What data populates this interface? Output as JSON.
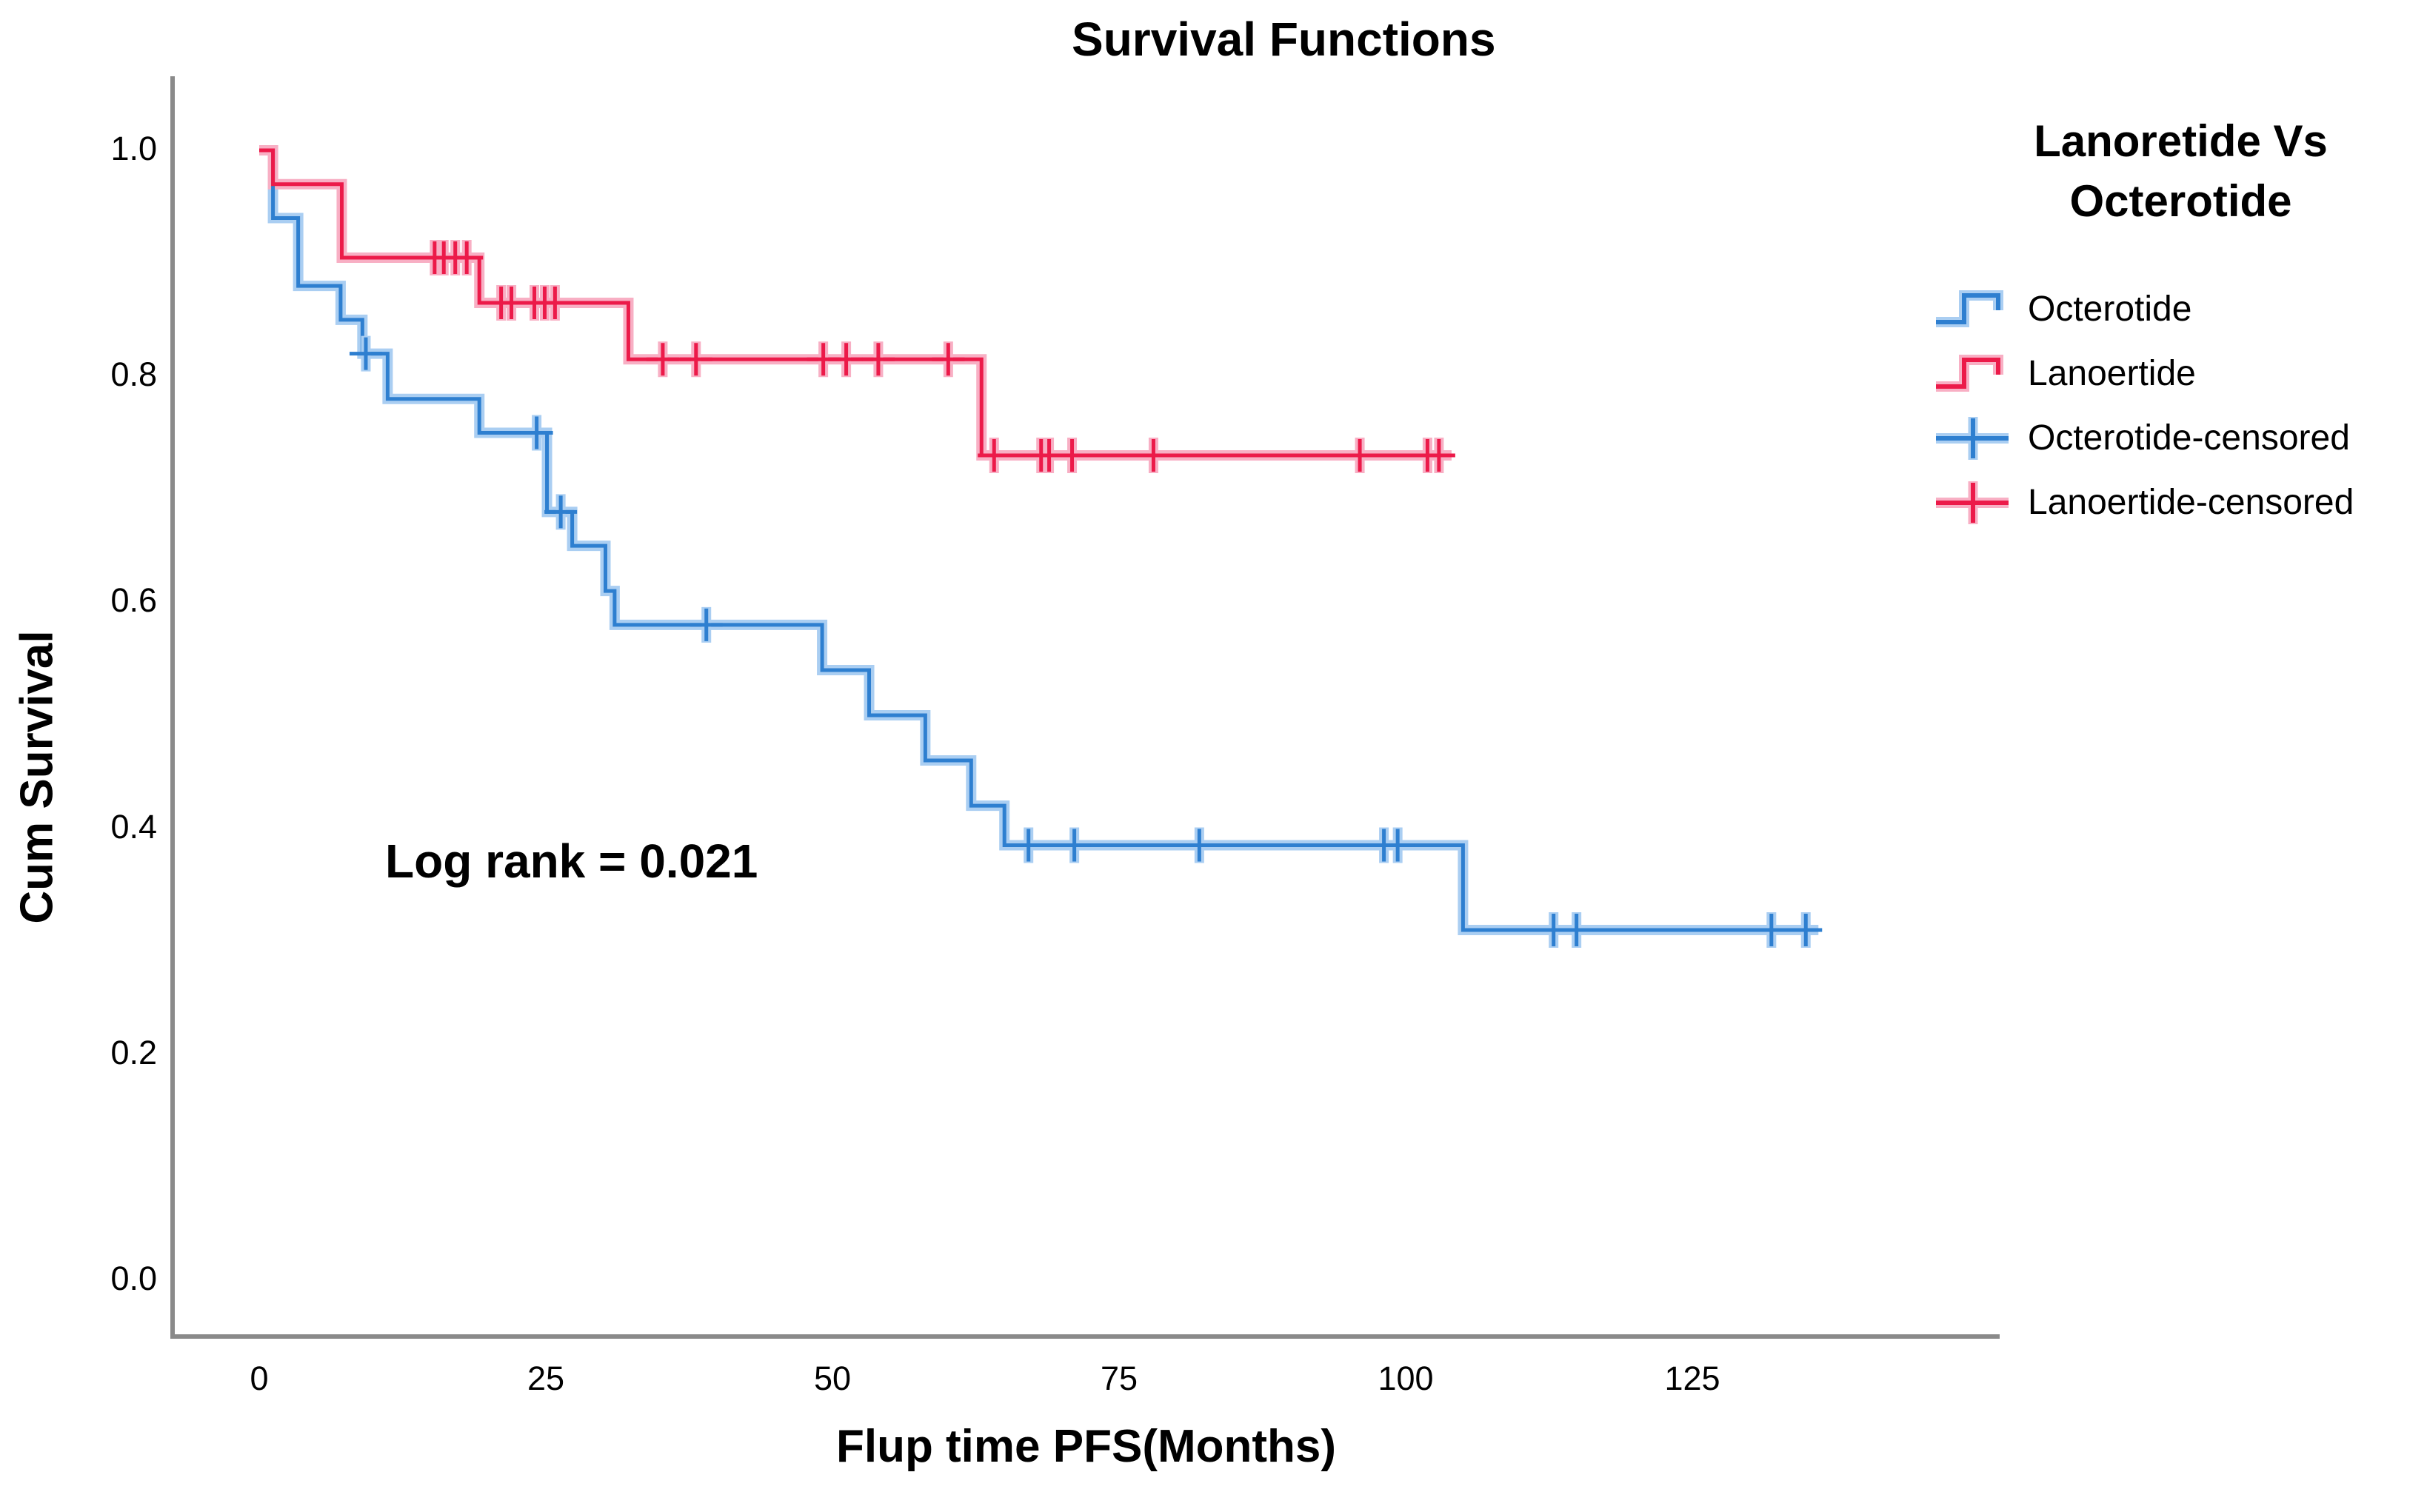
{
  "chart_data": {
    "type": "line",
    "subtype": "kaplan-meier-step",
    "title": "Survival Functions",
    "xlabel": "Flup time PFS(Months)",
    "ylabel": "Cum Survival",
    "annotation": "Log rank = 0.021",
    "grid": false,
    "axis_color": "#8A8A8A",
    "x_ticks": [
      "0",
      "25",
      "50",
      "75",
      "100",
      "125"
    ],
    "x_tick_values": [
      0,
      25,
      50,
      75,
      100,
      125
    ],
    "y_ticks": [
      "0.0",
      "0.2",
      "0.4",
      "0.6",
      "0.8",
      "1.0"
    ],
    "y_tick_values": [
      0.0,
      0.2,
      0.4,
      0.6,
      0.8,
      1.0
    ],
    "xlim": [
      -7.5,
      152
    ],
    "ylim": [
      -0.05,
      1.066
    ],
    "legend": {
      "title": "Lanoretide Vs Octerotide",
      "position": "right",
      "entries": [
        {
          "label": "Octerotide",
          "color": "#2E7FD0",
          "halo": "#AACEF2",
          "type": "step-line"
        },
        {
          "label": "Lanoertide",
          "color": "#EC1A49",
          "halo": "#F8AFC4",
          "type": "step-line"
        },
        {
          "label": "Octerotide-censored",
          "color": "#2E7FD0",
          "halo": "#AACEF2",
          "type": "censor-plus"
        },
        {
          "label": "Lanoertide-censored",
          "color": "#EC1A49",
          "halo": "#F8AFC4",
          "type": "censor-plus"
        }
      ]
    },
    "series": [
      {
        "name": "Octerotide",
        "color": "#2E7FD0",
        "halo_color": "#AACEF2",
        "start": {
          "t": 0,
          "v": 1.0
        },
        "end_t": 136,
        "drops": [
          [
            1.2,
            0.94
          ],
          [
            3.4,
            0.88
          ],
          [
            7.1,
            0.85
          ],
          [
            9.0,
            0.82
          ],
          [
            11.2,
            0.78
          ],
          [
            19.2,
            0.75
          ],
          [
            25.1,
            0.68
          ],
          [
            27.3,
            0.65
          ],
          [
            30.2,
            0.61
          ],
          [
            31.0,
            0.58
          ],
          [
            49.1,
            0.54
          ],
          [
            53.2,
            0.5
          ],
          [
            58.1,
            0.46
          ],
          [
            62.1,
            0.42
          ],
          [
            65.0,
            0.385
          ],
          [
            105.0,
            0.31
          ]
        ],
        "censors": [
          [
            9.3,
            0.82
          ],
          [
            24.2,
            0.75
          ],
          [
            26.3,
            0.68
          ],
          [
            39.0,
            0.58
          ],
          [
            67.1,
            0.385
          ],
          [
            71.1,
            0.385
          ],
          [
            82.0,
            0.385
          ],
          [
            98.1,
            0.385
          ],
          [
            99.3,
            0.385
          ],
          [
            112.9,
            0.31
          ],
          [
            114.9,
            0.31
          ],
          [
            131.9,
            0.31
          ],
          [
            134.9,
            0.31
          ]
        ]
      },
      {
        "name": "Lanoertide",
        "color": "#EC1A49",
        "halo_color": "#F8AFC4",
        "start": {
          "t": 0,
          "v": 1.0
        },
        "end_t": 104,
        "drops": [
          [
            1.2,
            0.97
          ],
          [
            7.2,
            0.905
          ],
          [
            19.2,
            0.865
          ],
          [
            32.2,
            0.815
          ],
          [
            63.0,
            0.73
          ]
        ],
        "censors": [
          [
            15.3,
            0.905
          ],
          [
            16.1,
            0.905
          ],
          [
            17.1,
            0.905
          ],
          [
            18.1,
            0.905
          ],
          [
            21.1,
            0.865
          ],
          [
            22.0,
            0.865
          ],
          [
            24.0,
            0.865
          ],
          [
            24.9,
            0.865
          ],
          [
            25.8,
            0.865
          ],
          [
            35.2,
            0.815
          ],
          [
            38.1,
            0.815
          ],
          [
            49.2,
            0.815
          ],
          [
            51.2,
            0.815
          ],
          [
            54.0,
            0.815
          ],
          [
            60.1,
            0.815
          ],
          [
            64.1,
            0.73
          ],
          [
            68.2,
            0.73
          ],
          [
            68.9,
            0.73
          ],
          [
            70.9,
            0.73
          ],
          [
            78.0,
            0.73
          ],
          [
            96.0,
            0.73
          ],
          [
            101.9,
            0.73
          ],
          [
            102.9,
            0.73
          ]
        ]
      }
    ]
  }
}
